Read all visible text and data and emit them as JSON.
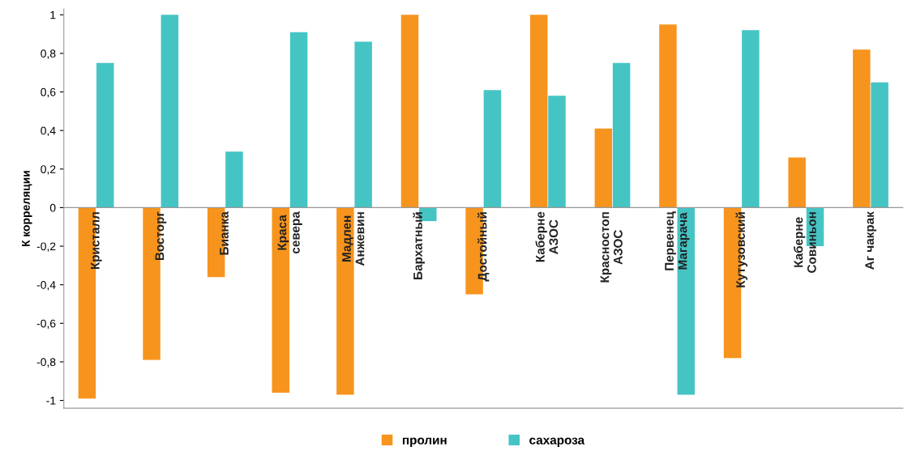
{
  "chart_data": {
    "type": "bar",
    "ylabel": "К корреляции",
    "categories": [
      "Кристалл",
      "Восторг",
      "Бианка",
      "Краса\nсевера",
      "Мадлен\nАнжевин",
      "Бархатный",
      "Достойный",
      "Каберне\nАЗОС",
      "Красностоп\nАЗОС",
      "Первенец\nМагарача",
      "Кутузовский",
      "Каберне\nСовиньон",
      "Аг чакрак"
    ],
    "series": [
      {
        "name": "пролин",
        "color": "#f7941d",
        "values": [
          -0.99,
          -0.79,
          -0.36,
          -0.96,
          -0.97,
          1.0,
          -0.45,
          1.0,
          0.41,
          0.95,
          -0.78,
          0.26,
          0.82
        ]
      },
      {
        "name": "сахароза",
        "color": "#45c4c4",
        "values": [
          0.75,
          1.0,
          0.29,
          0.91,
          0.86,
          -0.07,
          0.61,
          0.58,
          0.75,
          -0.97,
          0.92,
          -0.2,
          0.65
        ]
      }
    ],
    "ylim": [
      -1.04,
      1.03
    ],
    "yticks": [
      {
        "value": -1,
        "label": "-1"
      },
      {
        "value": -0.8,
        "label": "-0,8"
      },
      {
        "value": -0.6,
        "label": "-0,6"
      },
      {
        "value": -0.4,
        "label": "-0,4"
      },
      {
        "value": -0.2,
        "label": "-0,2"
      },
      0,
      {
        "value": 0.2,
        "label": "0,2"
      },
      {
        "value": 0.4,
        "label": "0,4"
      },
      {
        "value": 0.6,
        "label": "0,6"
      },
      {
        "value": 0.8,
        "label": "0,8"
      },
      1
    ],
    "grid": false,
    "legend": "bottom"
  }
}
